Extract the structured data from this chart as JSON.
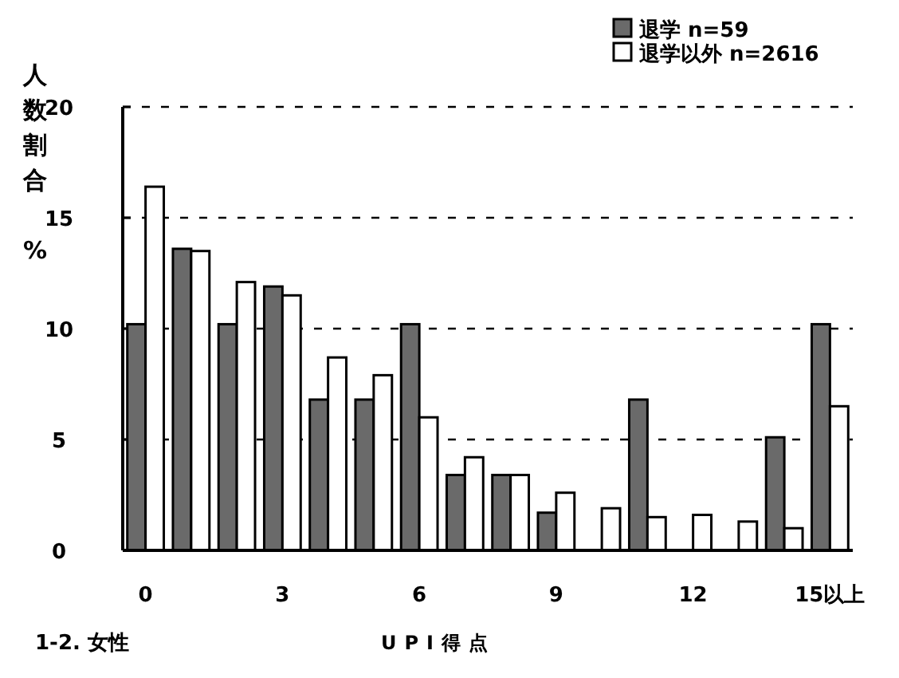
{
  "chart_data": {
    "type": "bar",
    "title": "1-2. 女性",
    "xlabel": "UPI得点",
    "ylabel": "人数割合%",
    "categories": [
      "0",
      null,
      null,
      "3",
      null,
      null,
      "6",
      null,
      null,
      "9",
      null,
      null,
      "12",
      null,
      null,
      "15以上"
    ],
    "series": [
      {
        "name": "退学 n=59",
        "color": "#6a6a6a",
        "values": [
          10.2,
          13.6,
          10.2,
          11.9,
          6.8,
          6.8,
          10.2,
          3.4,
          3.4,
          1.7,
          0,
          6.8,
          0,
          0,
          5.1,
          10.2
        ]
      },
      {
        "name": "退学以外 n=2616",
        "color": "#ffffff",
        "values": [
          16.4,
          13.5,
          12.1,
          11.5,
          8.7,
          7.9,
          6.0,
          4.2,
          3.4,
          2.6,
          1.9,
          1.5,
          1.6,
          1.3,
          1.0,
          6.5
        ]
      }
    ],
    "ylim": [
      0,
      20
    ],
    "yticks": [
      0,
      5,
      10,
      15,
      20
    ],
    "grid": "y",
    "legend": "top right"
  }
}
